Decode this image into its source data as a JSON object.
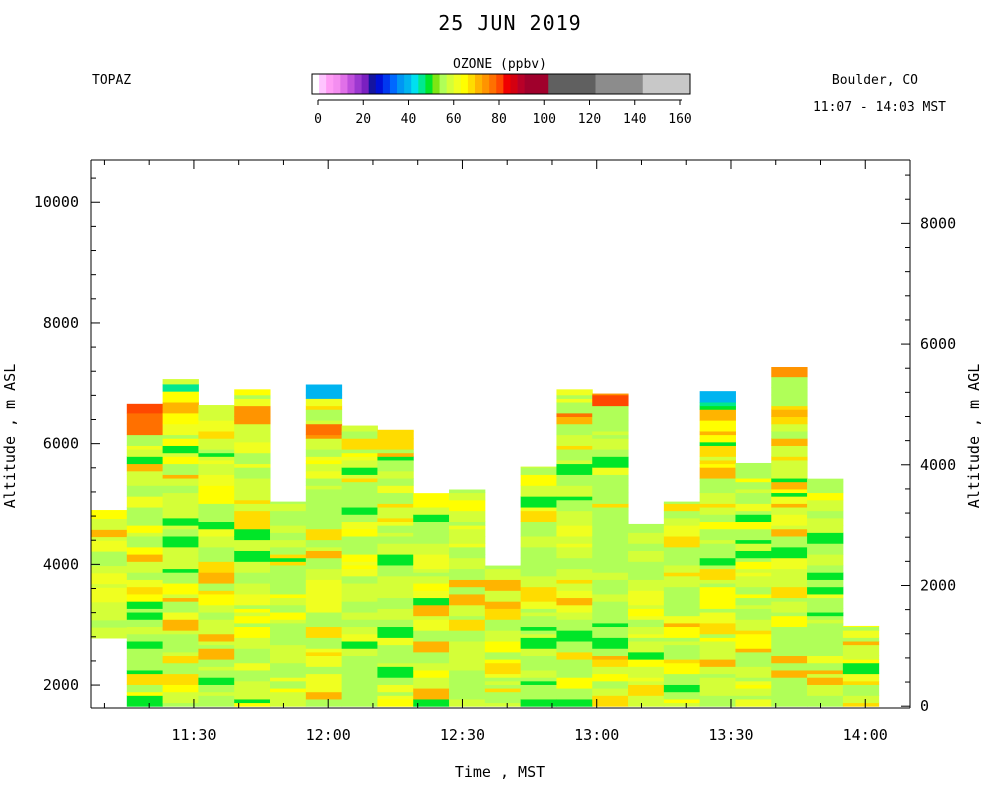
{
  "chart_data": {
    "type": "heatmap",
    "title": "25 JUN 2019",
    "instrument": "TOPAZ",
    "location": "Boulder, CO",
    "time_range": "11:07 - 14:03 MST",
    "colorbar": {
      "label": "OZONE (ppbv)",
      "ticks": [
        "0",
        "20",
        "40",
        "60",
        "80",
        "100",
        "120",
        "140",
        "160"
      ],
      "bins": [
        {
          "from": 0,
          "to": 3,
          "color": "#ffffff"
        },
        {
          "from": 3,
          "to": 6,
          "color": "#ffc4ff"
        },
        {
          "from": 6,
          "to": 9,
          "color": "#ff9cf5"
        },
        {
          "from": 9,
          "to": 12,
          "color": "#f48ef0"
        },
        {
          "from": 12,
          "to": 15,
          "color": "#e070e8"
        },
        {
          "from": 15,
          "to": 18,
          "color": "#c050dc"
        },
        {
          "from": 18,
          "to": 21,
          "color": "#9c38d0"
        },
        {
          "from": 21,
          "to": 24,
          "color": "#7a20c0"
        },
        {
          "from": 24,
          "to": 27,
          "color": "#1414a0"
        },
        {
          "from": 27,
          "to": 30,
          "color": "#0010d8"
        },
        {
          "from": 30,
          "to": 33,
          "color": "#0038f0"
        },
        {
          "from": 33,
          "to": 36,
          "color": "#0068ff"
        },
        {
          "from": 36,
          "to": 39,
          "color": "#0096f4"
        },
        {
          "from": 39,
          "to": 42,
          "color": "#00b4f0"
        },
        {
          "from": 42,
          "to": 45,
          "color": "#00e0f0"
        },
        {
          "from": 45,
          "to": 48,
          "color": "#00e890"
        },
        {
          "from": 48,
          "to": 51,
          "color": "#00e628"
        },
        {
          "from": 51,
          "to": 54,
          "color": "#7ee614"
        },
        {
          "from": 54,
          "to": 57,
          "color": "#b0ff58"
        },
        {
          "from": 57,
          "to": 60,
          "color": "#d4ff38"
        },
        {
          "from": 60,
          "to": 63,
          "color": "#f0ff20"
        },
        {
          "from": 63,
          "to": 66,
          "color": "#ffff00"
        },
        {
          "from": 66,
          "to": 69,
          "color": "#ffdc00"
        },
        {
          "from": 69,
          "to": 72,
          "color": "#ffb400"
        },
        {
          "from": 72,
          "to": 75,
          "color": "#ff9400"
        },
        {
          "from": 75,
          "to": 78,
          "color": "#ff7000"
        },
        {
          "from": 78,
          "to": 81,
          "color": "#ff4800"
        },
        {
          "from": 81,
          "to": 84,
          "color": "#f00000"
        },
        {
          "from": 84,
          "to": 87,
          "color": "#d40010"
        },
        {
          "from": 87,
          "to": 90,
          "color": "#b80028"
        },
        {
          "from": 90,
          "to": 100,
          "color": "#a0002c"
        },
        {
          "from": 100,
          "to": 120,
          "color": "#606060"
        },
        {
          "from": 120,
          "to": 140,
          "color": "#8c8c8c"
        },
        {
          "from": 140,
          "to": 160,
          "color": "#c8c8c8"
        }
      ]
    },
    "xlabel": "Time , MST",
    "ylabel_left": "Altitude , m ASL",
    "ylabel_right": "Altitude , m AGL",
    "x_ticks": [
      "11:30",
      "12:00",
      "12:30",
      "13:00",
      "13:30",
      "14:00"
    ],
    "y_ticks_left": [
      "2000",
      "4000",
      "6000",
      "8000",
      "10000"
    ],
    "y_ticks_right": [
      "0",
      "2000",
      "4000",
      "6000",
      "8000"
    ],
    "xlim": [
      "11:07",
      "14:10"
    ],
    "ylim_left": [
      1620,
      10700
    ],
    "surface_altitude_m_asl": 1650,
    "bin_minutes": 8,
    "columns": [
      {
        "start": "11:07",
        "base": 2780,
        "top": 4900,
        "hi": []
      },
      {
        "start": "11:15",
        "base": 1650,
        "top": 6660,
        "hi": [
          [
            6080,
            6660,
            80
          ]
        ]
      },
      {
        "start": "11:23",
        "base": 1650,
        "top": 7070,
        "hi": [
          [
            6780,
            6880,
            44
          ],
          [
            6300,
            6600,
            67
          ]
        ]
      },
      {
        "start": "11:31",
        "base": 1650,
        "top": 6640,
        "hi": []
      },
      {
        "start": "11:39",
        "base": 1650,
        "top": 6900,
        "hi": [
          [
            6300,
            6580,
            72
          ]
        ]
      },
      {
        "start": "11:47",
        "base": 1650,
        "top": 5040,
        "hi": []
      },
      {
        "start": "11:55",
        "base": 1650,
        "top": 6980,
        "hi": [
          [
            6720,
            6820,
            44
          ],
          [
            6000,
            6300,
            76
          ]
        ]
      },
      {
        "start": "12:03",
        "base": 1650,
        "top": 6300,
        "hi": []
      },
      {
        "start": "12:11",
        "base": 1650,
        "top": 6230,
        "hi": [
          [
            5900,
            6230,
            68
          ]
        ]
      },
      {
        "start": "12:19",
        "base": 1650,
        "top": 5180,
        "hi": []
      },
      {
        "start": "12:27",
        "base": 1650,
        "top": 5240,
        "hi": []
      },
      {
        "start": "12:35",
        "base": 1650,
        "top": 3980,
        "hi": []
      },
      {
        "start": "12:43",
        "base": 1650,
        "top": 5620,
        "hi": []
      },
      {
        "start": "12:51",
        "base": 1650,
        "top": 6900,
        "hi": [
          [
            6200,
            6500,
            72
          ]
        ]
      },
      {
        "start": "12:59",
        "base": 1650,
        "top": 6830,
        "hi": [
          [
            6600,
            6830,
            76
          ]
        ]
      },
      {
        "start": "13:07",
        "base": 1650,
        "top": 4670,
        "hi": []
      },
      {
        "start": "13:15",
        "base": 1650,
        "top": 5040,
        "hi": []
      },
      {
        "start": "13:23",
        "base": 1650,
        "top": 6870,
        "hi": [
          [
            6580,
            6870,
            45
          ],
          [
            6000,
            6400,
            68
          ]
        ]
      },
      {
        "start": "13:31",
        "base": 1650,
        "top": 5680,
        "hi": []
      },
      {
        "start": "13:39",
        "base": 1650,
        "top": 7270,
        "hi": [
          [
            6950,
            7270,
            74
          ],
          [
            6300,
            6600,
            70
          ]
        ]
      },
      {
        "start": "13:47",
        "base": 1650,
        "top": 5420,
        "hi": []
      },
      {
        "start": "13:55",
        "base": 1650,
        "top": 2980,
        "hi": []
      }
    ]
  }
}
